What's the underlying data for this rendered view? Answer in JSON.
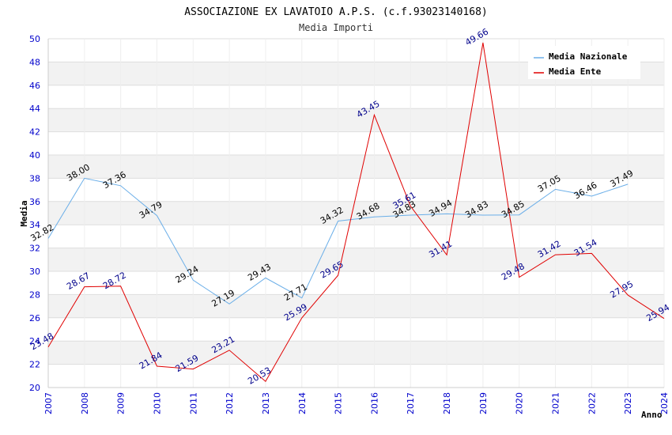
{
  "chart_data": {
    "type": "line",
    "title": "ASSOCIAZIONE EX LAVATOIO A.P.S. (c.f.93023140168)",
    "subtitle": "Media Importi",
    "xlabel": "Anno",
    "ylabel": "Media",
    "ylim": [
      20,
      50
    ],
    "yticks": [
      "20",
      "22",
      "24",
      "26",
      "28",
      "30",
      "32",
      "34",
      "36",
      "38",
      "40",
      "42",
      "44",
      "46",
      "48",
      "50"
    ],
    "x": [
      "2007",
      "2008",
      "2009",
      "2010",
      "2011",
      "2012",
      "2013",
      "2014",
      "2015",
      "2016",
      "2017",
      "2018",
      "2019",
      "2020",
      "2021",
      "2022",
      "2023",
      "2024"
    ],
    "grid": true,
    "legend_position": "top-right",
    "series": [
      {
        "name": "Media Nazionale",
        "color": "#6aaee8",
        "label_color": "#000000",
        "values": [
          32.82,
          38.0,
          37.36,
          34.79,
          29.24,
          27.19,
          29.43,
          27.71,
          34.32,
          34.68,
          34.83,
          34.94,
          34.83,
          34.85,
          37.05,
          36.46,
          37.49,
          null
        ],
        "labels": [
          "32.82",
          "38.00",
          "37.36",
          "34.79",
          "29.24",
          "27.19",
          "29.43",
          "27.71",
          "34.32",
          "34.68",
          "34.83",
          "34.94",
          "34.83",
          "34.85",
          "37.05",
          "36.46",
          "37.49",
          ""
        ]
      },
      {
        "name": "Media Ente",
        "color": "#e00000",
        "label_color": "#00008b",
        "values": [
          23.48,
          28.67,
          28.72,
          21.84,
          21.59,
          23.21,
          20.53,
          25.99,
          29.65,
          43.45,
          35.61,
          31.41,
          49.66,
          29.48,
          31.42,
          31.54,
          27.95,
          25.94
        ],
        "labels": [
          "23.48",
          "28.67",
          "28.72",
          "21.84",
          "21.59",
          "23.21",
          "20.53",
          "25.99",
          "29.65",
          "43.45",
          "35.61",
          "31.41",
          "49.66",
          "29.48",
          "31.42",
          "31.54",
          "27.95",
          "25.94"
        ]
      }
    ]
  }
}
